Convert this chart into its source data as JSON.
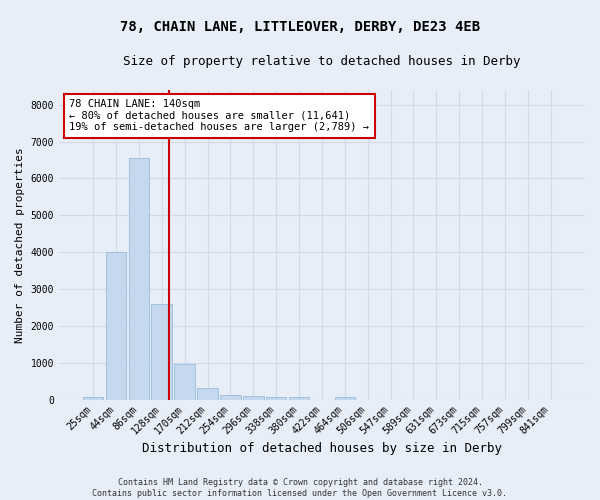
{
  "title": "78, CHAIN LANE, LITTLEOVER, DERBY, DE23 4EB",
  "subtitle": "Size of property relative to detached houses in Derby",
  "xlabel": "Distribution of detached houses by size in Derby",
  "ylabel": "Number of detached properties",
  "footer_line1": "Contains HM Land Registry data © Crown copyright and database right 2024.",
  "footer_line2": "Contains public sector information licensed under the Open Government Licence v3.0.",
  "bar_labels": [
    "25sqm",
    "44sqm",
    "86sqm",
    "128sqm",
    "170sqm",
    "212sqm",
    "254sqm",
    "296sqm",
    "338sqm",
    "380sqm",
    "422sqm",
    "464sqm",
    "506sqm",
    "547sqm",
    "589sqm",
    "631sqm",
    "673sqm",
    "715sqm",
    "757sqm",
    "799sqm",
    "841sqm"
  ],
  "bar_values": [
    80,
    4000,
    6560,
    2600,
    960,
    320,
    130,
    110,
    80,
    60,
    0,
    60,
    0,
    0,
    0,
    0,
    0,
    0,
    0,
    0,
    0
  ],
  "bar_color": "#c5d8ee",
  "bar_edgecolor": "#8ab4d8",
  "grid_color": "#d0daea",
  "annotation_box_text": "78 CHAIN LANE: 140sqm\n← 80% of detached houses are smaller (11,641)\n19% of semi-detached houses are larger (2,789) →",
  "annotation_box_edgecolor": "#cc0000",
  "vline_color": "#cc0000",
  "vline_pos": 3.3,
  "ylim": [
    0,
    8400
  ],
  "yticks": [
    0,
    1000,
    2000,
    3000,
    4000,
    5000,
    6000,
    7000,
    8000
  ],
  "background_color": "#e8eef8",
  "axes_background": "#e8eef8",
  "title_fontsize": 10,
  "subtitle_fontsize": 9,
  "xlabel_fontsize": 9,
  "ylabel_fontsize": 8,
  "tick_fontsize": 7,
  "ann_fontsize": 7.5,
  "footer_fontsize": 6
}
